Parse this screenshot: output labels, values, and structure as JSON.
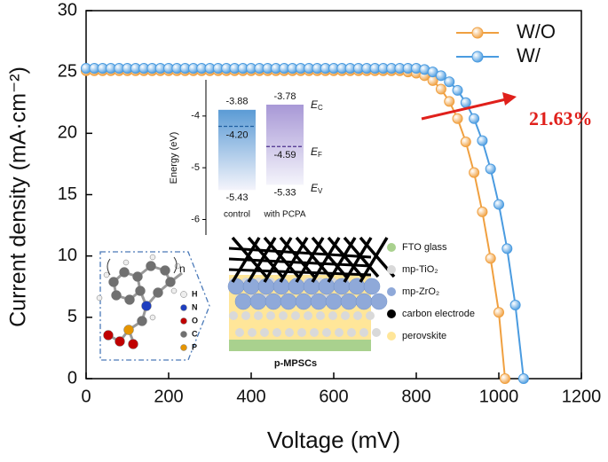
{
  "chart_data": [
    {
      "type": "line",
      "xlabel": "Voltage (mV)",
      "ylabel": "Current density (mA·cm⁻²)",
      "xlim": [
        0,
        1200
      ],
      "xticks": [
        0,
        200,
        400,
        600,
        800,
        1000,
        1200
      ],
      "ylim": [
        0,
        30
      ],
      "yticks": [
        0,
        5,
        10,
        15,
        20,
        25,
        30
      ],
      "legend": "upper right",
      "series": [
        {
          "name": "W/O",
          "color": "#f0a040",
          "x": [
            0,
            20,
            40,
            60,
            80,
            100,
            120,
            140,
            160,
            180,
            200,
            220,
            240,
            260,
            280,
            300,
            320,
            340,
            360,
            380,
            400,
            420,
            440,
            460,
            480,
            500,
            520,
            540,
            560,
            580,
            600,
            620,
            640,
            660,
            680,
            700,
            720,
            740,
            760,
            780,
            800,
            820,
            840,
            860,
            880,
            900,
            920,
            940,
            960,
            980,
            1000,
            1015
          ],
          "values": [
            25.1,
            25.1,
            25.1,
            25.1,
            25.1,
            25.1,
            25.1,
            25.1,
            25.1,
            25.1,
            25.1,
            25.1,
            25.1,
            25.1,
            25.1,
            25.1,
            25.1,
            25.1,
            25.1,
            25.1,
            25.1,
            25.1,
            25.1,
            25.1,
            25.1,
            25.1,
            25.1,
            25.1,
            25.1,
            25.1,
            25.1,
            25.1,
            25.1,
            25.1,
            25.1,
            25.1,
            25.1,
            25.1,
            25.1,
            25.0,
            24.9,
            24.7,
            24.3,
            23.6,
            22.6,
            21.2,
            19.3,
            16.8,
            13.6,
            9.8,
            5.4,
            0
          ]
        },
        {
          "name": "W/",
          "color": "#4a9be0",
          "x": [
            0,
            20,
            40,
            60,
            80,
            100,
            120,
            140,
            160,
            180,
            200,
            220,
            240,
            260,
            280,
            300,
            320,
            340,
            360,
            380,
            400,
            420,
            440,
            460,
            480,
            500,
            520,
            540,
            560,
            580,
            600,
            620,
            640,
            660,
            680,
            700,
            720,
            740,
            760,
            780,
            800,
            820,
            840,
            860,
            880,
            900,
            920,
            940,
            960,
            980,
            1000,
            1020,
            1040,
            1060
          ],
          "values": [
            25.3,
            25.3,
            25.3,
            25.3,
            25.3,
            25.3,
            25.3,
            25.3,
            25.3,
            25.3,
            25.3,
            25.3,
            25.3,
            25.3,
            25.3,
            25.3,
            25.3,
            25.3,
            25.3,
            25.3,
            25.3,
            25.3,
            25.3,
            25.3,
            25.3,
            25.3,
            25.3,
            25.3,
            25.3,
            25.3,
            25.3,
            25.3,
            25.3,
            25.3,
            25.3,
            25.3,
            25.3,
            25.3,
            25.3,
            25.3,
            25.3,
            25.2,
            25.0,
            24.7,
            24.2,
            23.5,
            22.5,
            21.2,
            19.4,
            17.1,
            14.2,
            10.6,
            6.0,
            0
          ]
        }
      ],
      "annotation": {
        "text": "21.63%",
        "color": "#e0201b"
      }
    },
    {
      "type": "energy_levels",
      "ylabel": "Energy (eV)",
      "ylim": [
        -6.3,
        -3.3
      ],
      "yticks": [
        -4,
        -5,
        -6
      ],
      "categories": [
        "control",
        "with PCPA"
      ],
      "colors": [
        "#5b9bd5",
        "#a898d6"
      ],
      "fermi_colors": [
        "#1f5fa0",
        "#4b2f8c"
      ],
      "cb": [
        -3.88,
        -3.78
      ],
      "fermi": [
        -4.2,
        -4.59
      ],
      "fermi_labels": [
        "-4.20",
        "-4.59"
      ],
      "vb": [
        -5.43,
        -5.33
      ],
      "level_labels": [
        {
          "symbol": "E",
          "sub": "C"
        },
        {
          "symbol": "E",
          "sub": "F"
        },
        {
          "symbol": "E",
          "sub": "V"
        }
      ]
    }
  ],
  "molecule_inset": {
    "subscript": "n",
    "atoms": [
      {
        "label": "H",
        "color": "#eeeeee"
      },
      {
        "label": "N",
        "color": "#1f3fbf"
      },
      {
        "label": "O",
        "color": "#c00000"
      },
      {
        "label": "C",
        "color": "#707070"
      },
      {
        "label": "P",
        "color": "#e69500"
      }
    ]
  },
  "device_inset": {
    "label": "p-MPSCs",
    "layers": [
      {
        "name": "FTO glass",
        "color": "#a9d18e"
      },
      {
        "name": "mp-TiO₂",
        "color": "#d9d9d9"
      },
      {
        "name": "mp-ZrO₂",
        "color": "#8fa9d9"
      },
      {
        "name": "carbon electrode",
        "color": "#000000"
      },
      {
        "name": "perovskite",
        "color": "#ffe699"
      }
    ]
  }
}
